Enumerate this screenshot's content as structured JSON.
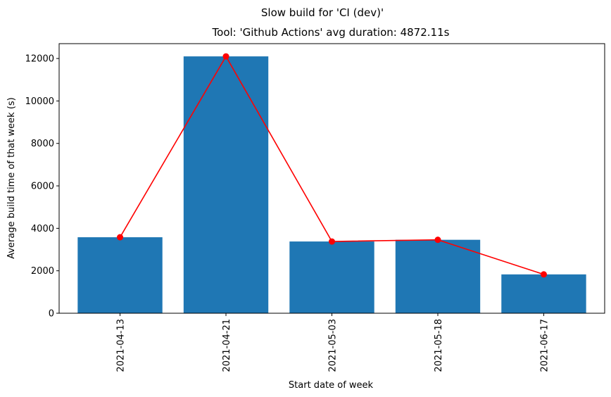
{
  "chart_data": {
    "type": "bar",
    "suptitle": "Slow build for 'CI (dev)'",
    "title": "Tool: 'Github Actions' avg duration: 4872.11s",
    "xlabel": "Start date of week",
    "ylabel": "Average build time of that week (s)",
    "categories": [
      "2021-04-13",
      "2021-04-21",
      "2021-05-03",
      "2021-05-18",
      "2021-06-17"
    ],
    "values": [
      3580,
      12100,
      3380,
      3460,
      1830
    ],
    "line_values": [
      3580,
      12100,
      3380,
      3460,
      1830
    ],
    "ylim": [
      0,
      12700
    ],
    "yticks": [
      0,
      2000,
      4000,
      6000,
      8000,
      10000,
      12000
    ],
    "grid": false,
    "bar_color": "#1f77b4",
    "line_color": "#ff0000"
  }
}
